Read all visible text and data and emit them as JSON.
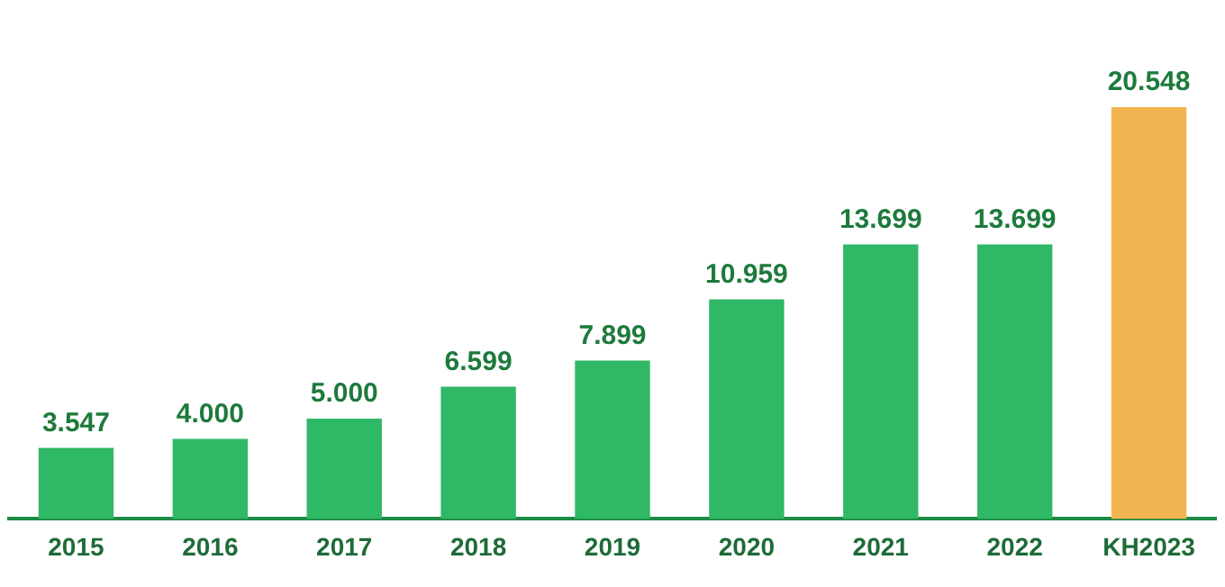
{
  "chart_data": {
    "type": "bar",
    "categories": [
      "2015",
      "2016",
      "2017",
      "2018",
      "2019",
      "2020",
      "2021",
      "2022",
      "KH2023"
    ],
    "values": [
      3547,
      4000,
      5000,
      6599,
      7899,
      10959,
      13699,
      13699,
      20548
    ],
    "colors": [
      "#2fb865",
      "#2fb865",
      "#2fb865",
      "#2fb865",
      "#2fb865",
      "#2fb865",
      "#2fb865",
      "#2fb865",
      "#f2b450"
    ],
    "value_labels": [
      "3.547",
      "4.000",
      "5.000",
      "6.599",
      "7.899",
      "10.959",
      "13.699",
      "13.699",
      "20.548"
    ],
    "grid": false,
    "legend": false
  }
}
